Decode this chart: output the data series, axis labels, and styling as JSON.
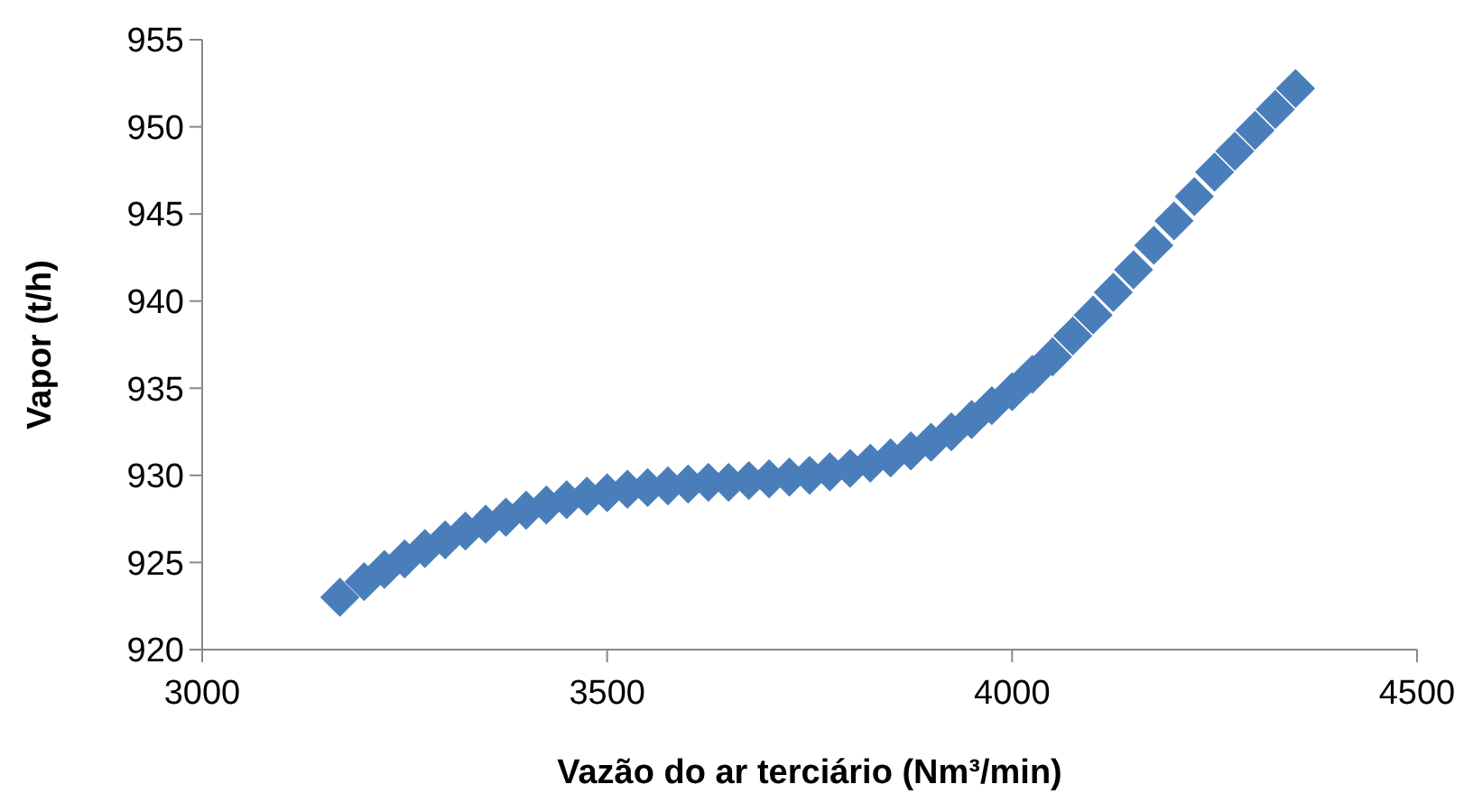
{
  "chart_data": {
    "type": "scatter",
    "xlabel": "Vazão do ar terciário (Nm³/min)",
    "ylabel": "Vapor (t/h)",
    "marker": "diamond",
    "grid": false,
    "xlim": [
      3000,
      4500
    ],
    "xticks": [
      3000,
      3500,
      4000,
      4500
    ],
    "ylim": [
      920,
      955
    ],
    "yticks": [
      920,
      925,
      930,
      935,
      940,
      945,
      950,
      955
    ],
    "series": [
      {
        "color": "#4a7ebb",
        "x": [
          3170,
          3200,
          3225,
          3250,
          3275,
          3300,
          3325,
          3350,
          3375,
          3400,
          3425,
          3450,
          3475,
          3500,
          3525,
          3550,
          3575,
          3600,
          3625,
          3650,
          3675,
          3700,
          3725,
          3750,
          3775,
          3800,
          3825,
          3850,
          3875,
          3900,
          3925,
          3950,
          3975,
          4000,
          4025,
          4050,
          4075,
          4100,
          4125,
          4150,
          4175,
          4200,
          4225,
          4250,
          4275,
          4300,
          4325,
          4350
        ],
        "values": [
          923.0,
          923.9,
          924.6,
          925.2,
          925.8,
          926.3,
          926.8,
          927.2,
          927.6,
          928.0,
          928.3,
          928.6,
          928.8,
          929.0,
          929.2,
          929.3,
          929.4,
          929.5,
          929.6,
          929.6,
          929.7,
          929.8,
          929.9,
          930.0,
          930.2,
          930.4,
          930.7,
          931.0,
          931.4,
          931.9,
          932.5,
          933.2,
          934.0,
          934.8,
          935.8,
          936.8,
          938.0,
          939.2,
          940.5,
          941.8,
          943.2,
          944.6,
          946.0,
          947.4,
          948.6,
          949.8,
          951.0,
          952.2
        ]
      }
    ]
  }
}
